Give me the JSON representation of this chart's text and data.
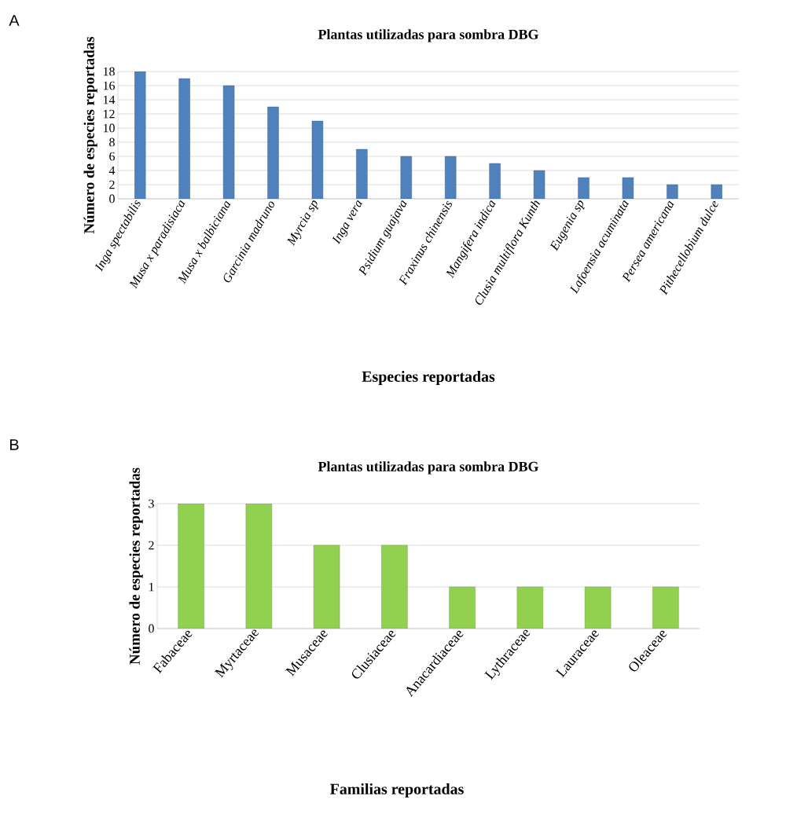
{
  "chart_data": [
    {
      "type": "bar",
      "title": "Plantas utilizadas para sombra DBG",
      "xlabel": "Especies  reportadas",
      "ylabel": "Número de especies  reportadas",
      "annotations": [
        "A"
      ],
      "categories": [
        "Inga spectabilis",
        "Musa x paradisiaca",
        "Musa x balbiciana",
        "Garcinia madruno",
        "Myrcia sp",
        "Inga vera",
        "Psidium guajava",
        "Fraxinus chinensis",
        "Mangifera indica",
        "Clusia multiflora Kunth",
        "Eugenia sp",
        "Lafoensia acuminata",
        "Persea americana",
        "Pithecellobium dulce"
      ],
      "values": [
        18,
        17,
        16,
        13,
        11,
        7,
        6,
        6,
        5,
        4,
        3,
        3,
        2,
        2
      ],
      "color": "#4f81bd",
      "ylim": [
        0,
        18
      ],
      "yticks": [
        0,
        2,
        4,
        6,
        8,
        10,
        12,
        14,
        16,
        18
      ],
      "grid": "y"
    },
    {
      "type": "bar",
      "title": "Plantas utilizadas para sombra DBG",
      "xlabel": "Familias reportadas",
      "ylabel": "Número de especies reportadas",
      "annotations": [
        "B"
      ],
      "categories": [
        "Fabaceae",
        "Myrtaceae",
        "Musaceae",
        "Clusiaceae",
        "Anacardiaceae",
        "Lythraceae",
        "Lauraceae",
        "Oleaceae"
      ],
      "values": [
        3,
        3,
        2,
        2,
        1,
        1,
        1,
        1
      ],
      "color": "#92d050",
      "ylim": [
        0,
        3
      ],
      "yticks": [
        0,
        1,
        2,
        3
      ],
      "grid": "y"
    }
  ]
}
